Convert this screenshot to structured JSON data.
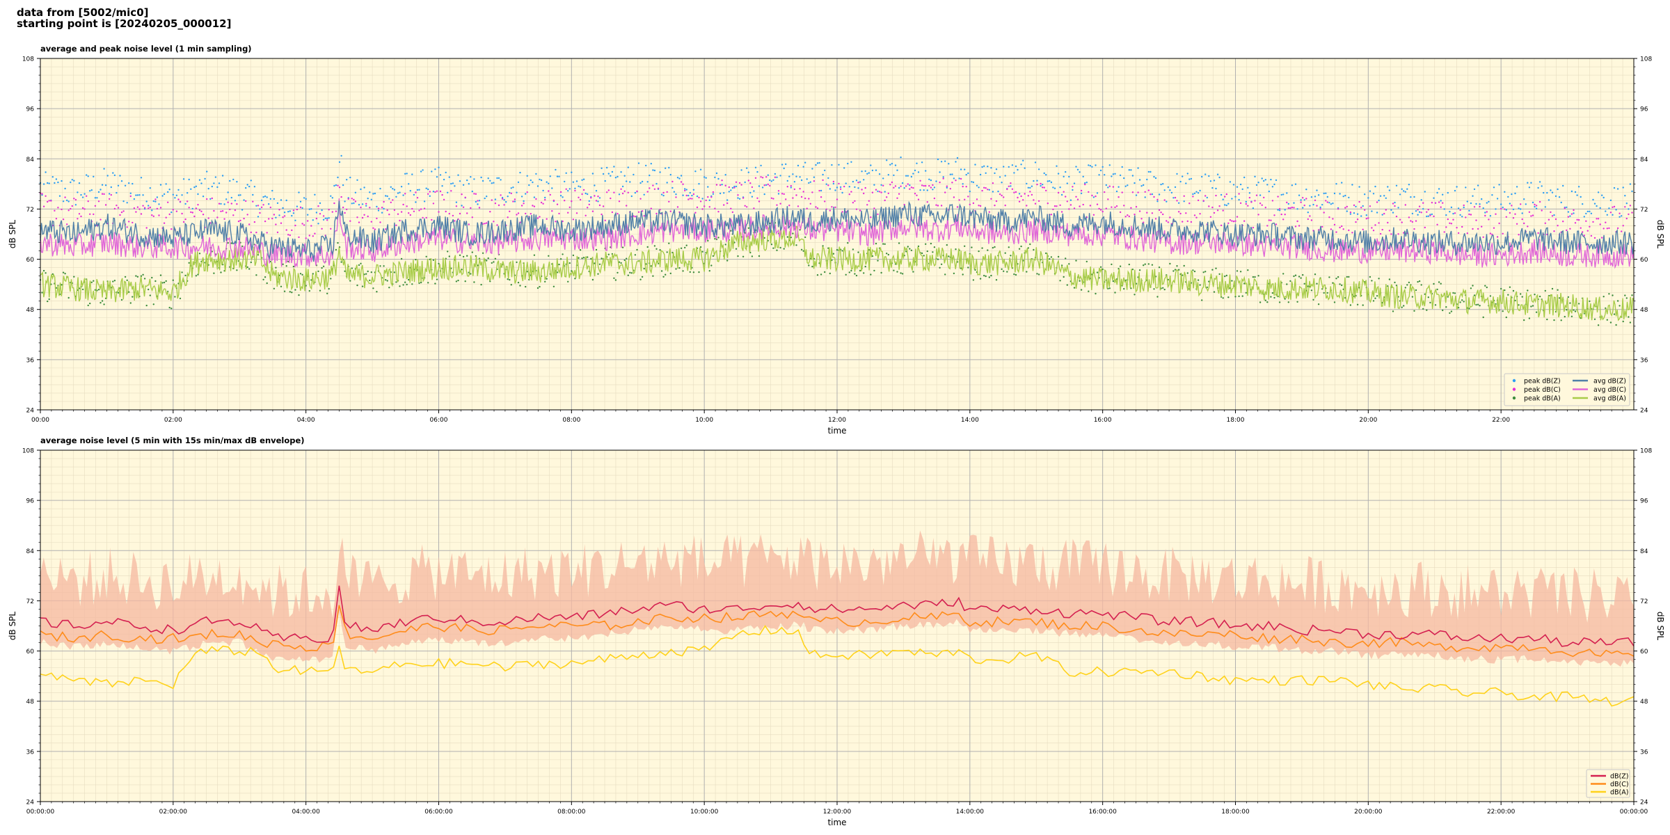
{
  "header": {
    "line1": "data from [5002/mic0]",
    "line2": "starting point is [20240205_000012]"
  },
  "chart_data": [
    {
      "type": "line",
      "title": "average and peak noise level (1 min sampling)",
      "xlabel": "time",
      "ylabel": "dB SPL",
      "ylim": [
        24,
        108
      ],
      "yticks": [
        24,
        36,
        48,
        60,
        72,
        84,
        96,
        108
      ],
      "xlim_hours": [
        0,
        24
      ],
      "x_tick_labels": [
        "00:00",
        "02:00",
        "04:00",
        "06:00",
        "08:00",
        "10:00",
        "12:00",
        "14:00",
        "16:00",
        "18:00",
        "20:00",
        "22:00"
      ],
      "grid": true,
      "background": "#fff8dc",
      "legend_position": "lower-right",
      "anchors_hours": [
        0,
        0.5,
        1,
        1.5,
        2,
        2.3,
        2.5,
        3,
        3.3,
        3.5,
        4,
        4.4,
        4.5,
        4.6,
        5,
        5.5,
        6,
        6.5,
        7,
        7.5,
        8,
        8.5,
        9,
        9.5,
        10,
        10.5,
        11,
        11.3,
        11.4,
        11.6,
        12,
        12.5,
        13,
        13.5,
        13.8,
        14,
        14.5,
        15,
        15.5,
        16,
        16.5,
        17,
        17.5,
        18,
        18.5,
        19,
        19.5,
        20,
        20.5,
        21,
        21.5,
        22,
        22.5,
        23,
        23.5,
        24
      ],
      "series": [
        {
          "name": "avg dB(Z)",
          "kind": "line",
          "color": "#4f7fa8",
          "values": [
            67,
            66,
            68,
            66,
            65,
            66,
            67,
            66,
            64,
            63,
            62,
            63,
            74,
            66,
            64,
            67,
            68,
            66,
            67,
            68,
            67,
            68,
            69,
            69,
            68,
            68,
            69,
            70,
            70,
            69,
            70,
            69,
            71,
            70,
            71,
            70,
            69,
            70,
            68,
            69,
            68,
            67,
            67,
            66,
            66,
            65,
            65,
            64,
            65,
            64,
            64,
            64,
            65,
            64,
            64,
            64
          ]
        },
        {
          "name": "avg dB(C)",
          "kind": "line",
          "color": "#e066d8",
          "values": [
            64,
            63,
            64,
            63,
            63,
            63,
            63,
            63,
            62,
            61,
            61,
            61,
            72,
            63,
            62,
            64,
            65,
            64,
            64,
            65,
            65,
            65,
            66,
            67,
            67,
            67,
            68,
            68,
            68,
            67,
            67,
            66,
            68,
            67,
            68,
            67,
            66,
            67,
            66,
            66,
            65,
            64,
            64,
            64,
            63,
            63,
            62,
            62,
            62,
            62,
            61,
            61,
            62,
            61,
            61,
            61
          ]
        },
        {
          "name": "avg dB(A)",
          "kind": "line",
          "color": "#a8cc48",
          "values": [
            54,
            53,
            52,
            53,
            52,
            59,
            60,
            60,
            60,
            56,
            55,
            56,
            62,
            56,
            56,
            57,
            58,
            58,
            57,
            57,
            58,
            59,
            59,
            60,
            60,
            64,
            65,
            65,
            65,
            60,
            60,
            60,
            60,
            60,
            60,
            59,
            59,
            60,
            56,
            55,
            55,
            55,
            54,
            54,
            53,
            53,
            53,
            52,
            51,
            51,
            50,
            50,
            49,
            49,
            48,
            48
          ]
        },
        {
          "name": "peak dB(Z)",
          "kind": "scatter",
          "color": "#2a9df4",
          "offset": 10,
          "spread": 4
        },
        {
          "name": "peak dB(C)",
          "kind": "scatter",
          "color": "#e62bd6",
          "offset": 8,
          "spread": 4
        },
        {
          "name": "peak dB(A)",
          "kind": "scatter",
          "color": "#3c8c3c",
          "offset": 0,
          "spread": 4
        }
      ],
      "legend": [
        {
          "label": "peak dB(Z)",
          "kind": "dot",
          "color": "#2a9df4"
        },
        {
          "label": "peak dB(C)",
          "kind": "dot",
          "color": "#e62bd6"
        },
        {
          "label": "peak dB(A)",
          "kind": "dot",
          "color": "#3c8c3c"
        },
        {
          "label": "avg dB(Z)",
          "kind": "line",
          "color": "#4f7fa8"
        },
        {
          "label": "avg dB(C)",
          "kind": "line",
          "color": "#e066d8"
        },
        {
          "label": "avg dB(A)",
          "kind": "line",
          "color": "#a8cc48"
        }
      ]
    },
    {
      "type": "line",
      "title": "average noise level (5 min with 15s min/max dB envelope)",
      "xlabel": "time",
      "ylabel": "dB SPL",
      "ylim": [
        24,
        108
      ],
      "yticks": [
        24,
        36,
        48,
        60,
        72,
        84,
        96,
        108
      ],
      "xlim_hours": [
        0,
        24
      ],
      "x_tick_labels": [
        "00:00:00",
        "02:00:00",
        "04:00:00",
        "06:00:00",
        "08:00:00",
        "10:00:00",
        "12:00:00",
        "14:00:00",
        "16:00:00",
        "18:00:00",
        "20:00:00",
        "22:00:00",
        "00:00:00"
      ],
      "grid": true,
      "background": "#fff8dc",
      "legend_position": "lower-right",
      "envelope": {
        "color": "#f5b8a0",
        "lower_offset": -4,
        "upper_offset": 14
      },
      "anchors_hours": [
        0,
        0.5,
        1,
        1.5,
        2,
        2.3,
        2.5,
        3,
        3.3,
        3.5,
        4,
        4.4,
        4.5,
        4.6,
        5,
        5.5,
        6,
        6.5,
        7,
        7.5,
        8,
        8.5,
        9,
        9.5,
        10,
        10.5,
        11,
        11.3,
        11.4,
        11.6,
        12,
        12.5,
        13,
        13.5,
        13.8,
        14,
        14.5,
        15,
        15.5,
        16,
        16.5,
        17,
        17.5,
        18,
        18.5,
        19,
        19.5,
        20,
        20.5,
        21,
        21.5,
        22,
        22.5,
        23,
        23.5,
        24
      ],
      "series": [
        {
          "name": "dB(Z)",
          "kind": "line",
          "color": "#d42050",
          "values": [
            67,
            66,
            67,
            66,
            65,
            66,
            67,
            67,
            65,
            63,
            63,
            63,
            75,
            66,
            65,
            67,
            68,
            67,
            67,
            68,
            68,
            69,
            70,
            71,
            70,
            70,
            71,
            71,
            72,
            70,
            70,
            70,
            71,
            71,
            72,
            70,
            70,
            70,
            69,
            69,
            68,
            67,
            67,
            66,
            66,
            65,
            65,
            64,
            64,
            64,
            63,
            63,
            63,
            62,
            62,
            62
          ]
        },
        {
          "name": "dB(C)",
          "kind": "line",
          "color": "#ff8c1a",
          "values": [
            64,
            63,
            64,
            63,
            63,
            63,
            64,
            64,
            62,
            62,
            61,
            61,
            72,
            64,
            63,
            65,
            66,
            65,
            65,
            66,
            66,
            66,
            67,
            68,
            68,
            68,
            69,
            69,
            70,
            67,
            67,
            67,
            68,
            68,
            69,
            67,
            67,
            67,
            66,
            66,
            65,
            64,
            64,
            64,
            63,
            63,
            62,
            62,
            62,
            61,
            61,
            61,
            61,
            60,
            59,
            59
          ]
        },
        {
          "name": "dB(A)",
          "kind": "line",
          "color": "#ffd21a",
          "values": [
            54,
            53,
            52,
            53,
            52,
            59,
            60,
            60,
            60,
            56,
            55,
            55,
            62,
            55,
            55,
            57,
            57,
            57,
            56,
            57,
            57,
            58,
            59,
            60,
            60,
            64,
            65,
            65,
            65,
            59,
            59,
            59,
            60,
            59,
            60,
            58,
            58,
            59,
            55,
            55,
            55,
            55,
            54,
            53,
            53,
            53,
            53,
            52,
            51,
            51,
            50,
            50,
            49,
            49,
            48,
            48
          ]
        }
      ],
      "legend": [
        {
          "label": "dB(Z)",
          "kind": "line",
          "color": "#d42050"
        },
        {
          "label": "dB(C)",
          "kind": "line",
          "color": "#ff8c1a"
        },
        {
          "label": "dB(A)",
          "kind": "line",
          "color": "#ffd21a"
        }
      ]
    }
  ]
}
